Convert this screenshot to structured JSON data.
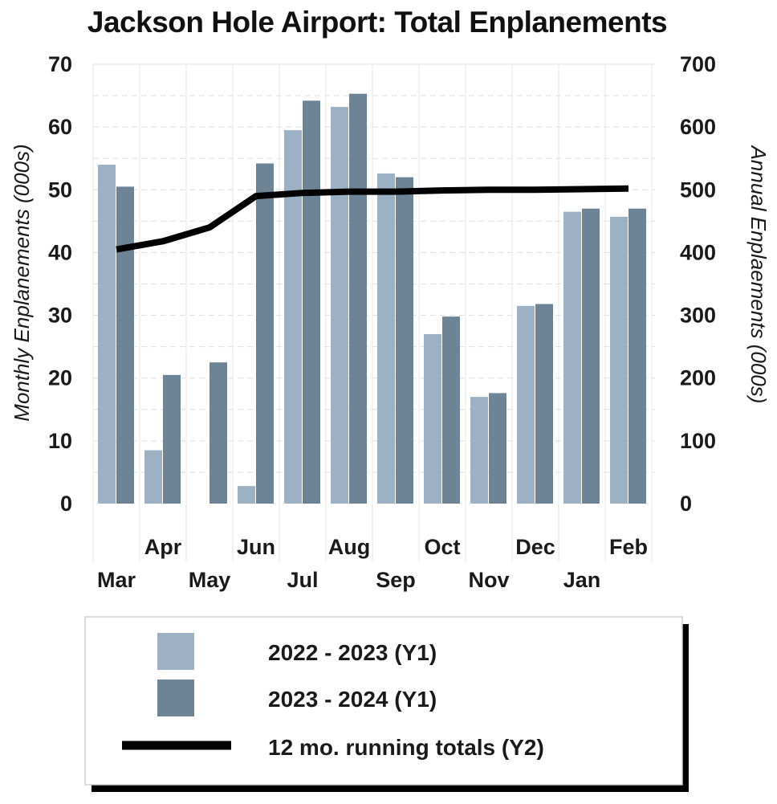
{
  "chart_data": {
    "type": "bar",
    "title": "Jackson Hole Airport: Total Enplanements",
    "categories": [
      "Mar",
      "Apr",
      "May",
      "Jun",
      "Jul",
      "Aug",
      "Sep",
      "Oct",
      "Nov",
      "Dec",
      "Jan",
      "Feb"
    ],
    "series": [
      {
        "name": "2022 - 2023 (Y1)",
        "axis": "left",
        "type": "bar",
        "color": "#9cb2c4",
        "values": [
          54.0,
          8.5,
          null,
          2.8,
          59.5,
          63.2,
          52.6,
          27.0,
          17.0,
          31.5,
          46.5,
          45.7
        ]
      },
      {
        "name": "2023 - 2024 (Y1)",
        "axis": "left",
        "type": "bar",
        "color": "#6d8496",
        "values": [
          50.5,
          20.5,
          22.5,
          54.2,
          64.2,
          65.3,
          52.0,
          29.8,
          17.6,
          31.8,
          47.0,
          47.0
        ]
      },
      {
        "name": "12 mo. running totals (Y2)",
        "axis": "right",
        "type": "line",
        "color": "#000000",
        "values": [
          405,
          418,
          440,
          490,
          495,
          497,
          497,
          499,
          500,
          500,
          501,
          502
        ]
      }
    ],
    "ylabel_left": "Monthly Enplanements (000s)",
    "ylabel_right": "Annual Enplaements (000s)",
    "ylim_left": [
      0,
      70
    ],
    "ylim_right": [
      0,
      700
    ],
    "yticks_left": [
      "0",
      "10",
      "20",
      "30",
      "40",
      "50",
      "60",
      "70"
    ],
    "yticks_right": [
      "0",
      "100",
      "200",
      "300",
      "400",
      "500",
      "600",
      "700"
    ],
    "grid": true,
    "legend_position": "bottom"
  }
}
